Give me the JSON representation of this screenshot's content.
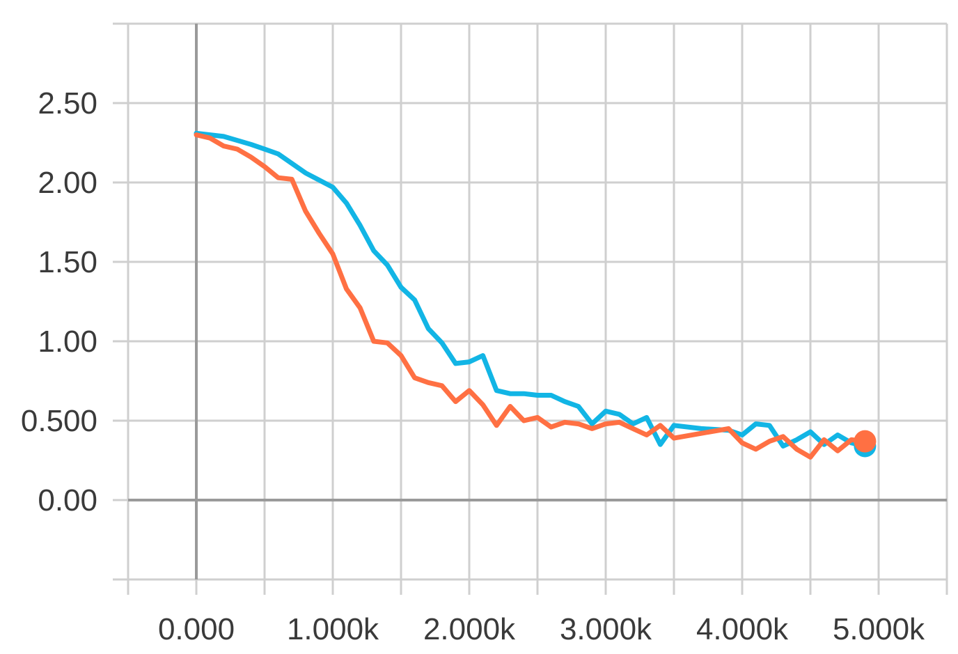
{
  "chart_data": {
    "type": "line",
    "title": "",
    "xlabel": "",
    "ylabel": "",
    "xlim": [
      -500,
      5500
    ],
    "ylim": [
      -0.5,
      3.0
    ],
    "grid": true,
    "legend": "none",
    "x_ticks": [
      0,
      1000,
      2000,
      3000,
      4000,
      5000
    ],
    "x_tick_labels": [
      "0.000",
      "1.000k",
      "2.000k",
      "3.000k",
      "4.000k",
      "5.000k"
    ],
    "y_ticks": [
      0,
      0.5,
      1.0,
      1.5,
      2.0,
      2.5
    ],
    "y_tick_labels": [
      "0.00",
      "0.500",
      "1.00",
      "1.50",
      "2.00",
      "2.50"
    ],
    "series": [
      {
        "color": "#12b5e5",
        "x": [
          0,
          200,
          400,
          500,
          600,
          800,
          1000,
          1100,
          1200,
          1300,
          1400,
          1500,
          1600,
          1700,
          1800,
          1900,
          2000,
          2100,
          2200,
          2300,
          2400,
          2500,
          2600,
          2700,
          2800,
          2900,
          3000,
          3100,
          3200,
          3300,
          3400,
          3500,
          3700,
          3900,
          4000,
          4100,
          4200,
          4300,
          4400,
          4500,
          4600,
          4700,
          4800,
          4900
        ],
        "y": [
          2.31,
          2.29,
          2.24,
          2.21,
          2.18,
          2.06,
          1.97,
          1.87,
          1.73,
          1.57,
          1.48,
          1.34,
          1.26,
          1.08,
          0.99,
          0.86,
          0.87,
          0.91,
          0.69,
          0.67,
          0.67,
          0.66,
          0.66,
          0.62,
          0.59,
          0.48,
          0.56,
          0.54,
          0.48,
          0.52,
          0.35,
          0.47,
          0.45,
          0.44,
          0.41,
          0.48,
          0.47,
          0.34,
          0.38,
          0.43,
          0.35,
          0.41,
          0.36,
          0.34
        ]
      },
      {
        "color": "#ff7043",
        "x": [
          0,
          100,
          200,
          300,
          400,
          500,
          600,
          700,
          800,
          900,
          1000,
          1100,
          1200,
          1300,
          1400,
          1500,
          1600,
          1700,
          1800,
          1900,
          2000,
          2100,
          2200,
          2300,
          2400,
          2500,
          2600,
          2700,
          2800,
          2900,
          3000,
          3100,
          3200,
          3300,
          3400,
          3500,
          3700,
          3900,
          4000,
          4100,
          4200,
          4300,
          4400,
          4500,
          4600,
          4700,
          4800,
          4900
        ],
        "y": [
          2.3,
          2.28,
          2.23,
          2.21,
          2.16,
          2.1,
          2.03,
          2.02,
          1.82,
          1.68,
          1.55,
          1.33,
          1.21,
          1.0,
          0.99,
          0.91,
          0.77,
          0.74,
          0.72,
          0.62,
          0.69,
          0.6,
          0.47,
          0.59,
          0.5,
          0.52,
          0.46,
          0.49,
          0.48,
          0.45,
          0.48,
          0.49,
          0.45,
          0.41,
          0.47,
          0.39,
          0.42,
          0.45,
          0.36,
          0.32,
          0.37,
          0.4,
          0.32,
          0.27,
          0.38,
          0.31,
          0.38,
          0.37
        ]
      }
    ]
  }
}
